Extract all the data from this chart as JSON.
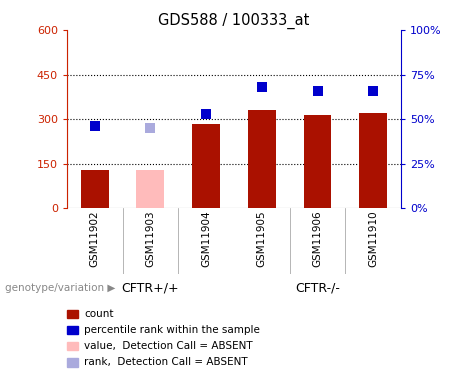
{
  "title": "GDS588 / 100333_at",
  "samples": [
    "GSM11902",
    "GSM11903",
    "GSM11904",
    "GSM11905",
    "GSM11906",
    "GSM11910"
  ],
  "bar_values": [
    130,
    130,
    285,
    330,
    315,
    320
  ],
  "bar_colors": [
    "#aa1100",
    "#ffbbbb",
    "#aa1100",
    "#aa1100",
    "#aa1100",
    "#aa1100"
  ],
  "rank_values_pct": [
    46,
    45,
    53,
    68,
    66,
    66
  ],
  "rank_colors": [
    "#0000cc",
    "#aaaadd",
    "#0000cc",
    "#0000cc",
    "#0000cc",
    "#0000cc"
  ],
  "ylim_left": [
    0,
    600
  ],
  "ylim_right": [
    0,
    100
  ],
  "yticks_left": [
    0,
    150,
    300,
    450,
    600
  ],
  "yticks_right": [
    0,
    25,
    50,
    75,
    100
  ],
  "ytick_labels_right": [
    "0%",
    "25%",
    "50%",
    "75%",
    "100%"
  ],
  "group1_label": "CFTR+/+",
  "group2_label": "CFTR-/-",
  "group1_count": 3,
  "group2_count": 3,
  "genotype_label": "genotype/variation",
  "legend_items": [
    {
      "label": "count",
      "color": "#aa1100"
    },
    {
      "label": "percentile rank within the sample",
      "color": "#0000cc"
    },
    {
      "label": "value,  Detection Call = ABSENT",
      "color": "#ffbbbb"
    },
    {
      "label": "rank,  Detection Call = ABSENT",
      "color": "#aaaadd"
    }
  ],
  "left_axis_color": "#cc2200",
  "right_axis_color": "#0000cc",
  "sample_bg_color": "#cccccc",
  "genotype_bg_color": "#66ee66",
  "grid_yticks": [
    150,
    300,
    450
  ],
  "bar_width": 0.5
}
